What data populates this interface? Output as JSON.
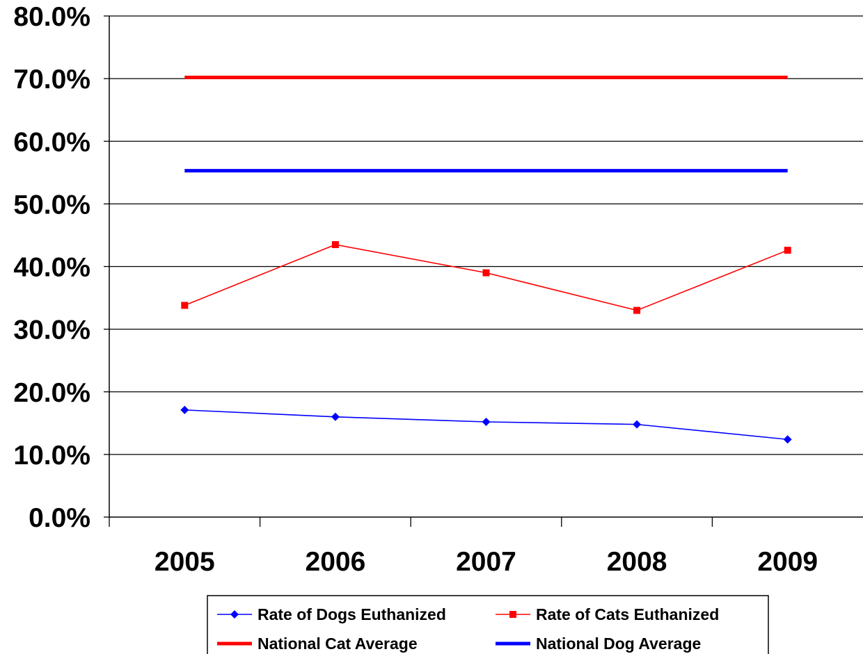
{
  "chart_data": {
    "type": "line",
    "title": "",
    "xlabel": "",
    "ylabel": "",
    "categories": [
      "2005",
      "2006",
      "2007",
      "2008",
      "2009"
    ],
    "ylim": [
      0,
      0.8
    ],
    "y_tick_values": [
      0,
      0.1,
      0.2,
      0.3,
      0.4,
      0.5,
      0.6,
      0.7,
      0.8
    ],
    "y_tick_labels": [
      "0.0%",
      "10.0%",
      "20.0%",
      "30.0%",
      "40.0%",
      "50.0%",
      "60.0%",
      "70.0%",
      "80.0%"
    ],
    "grid": "horizontal",
    "legend_position": "bottom",
    "series": [
      {
        "name": "Rate of Dogs Euthanized",
        "values": [
          0.171,
          0.16,
          0.152,
          0.148,
          0.124
        ],
        "color": "#0000FF",
        "marker": "diamond",
        "line_weight": "thin"
      },
      {
        "name": "Rate of Cats Euthanized",
        "values": [
          0.338,
          0.435,
          0.39,
          0.33,
          0.426
        ],
        "color": "#FF0000",
        "marker": "square",
        "line_weight": "thin"
      },
      {
        "name": "National Cat Average",
        "values": [
          0.702,
          0.702,
          0.702,
          0.702,
          0.702
        ],
        "color": "#FF0000",
        "marker": "none",
        "line_weight": "thick"
      },
      {
        "name": "National Dog Average",
        "values": [
          0.553,
          0.553,
          0.553,
          0.553,
          0.553
        ],
        "color": "#0000FF",
        "marker": "none",
        "line_weight": "thick"
      }
    ]
  }
}
